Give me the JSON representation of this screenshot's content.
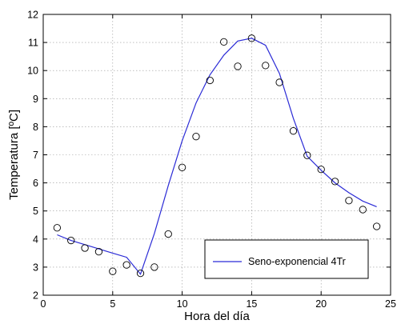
{
  "chart_data": {
    "type": "line",
    "xlabel": "Hora del día",
    "ylabel": "Temperatura [ºC]",
    "xlim": [
      0,
      25
    ],
    "ylim": [
      2,
      12
    ],
    "xticks": [
      0,
      5,
      10,
      15,
      20,
      25
    ],
    "yticks": [
      2,
      3,
      4,
      5,
      6,
      7,
      8,
      9,
      10,
      11,
      12
    ],
    "grid": true,
    "legend_position": "bottom-right",
    "series": [
      {
        "name": "Seno-exponencial 4Tr",
        "kind": "line",
        "color": "#2b2bd6",
        "x": [
          1,
          2,
          3,
          4,
          5,
          6,
          7,
          8,
          9,
          10,
          11,
          12,
          13,
          14,
          15,
          16,
          17,
          18,
          19,
          20,
          21,
          22,
          23,
          24
        ],
        "y": [
          4.15,
          3.95,
          3.8,
          3.65,
          3.5,
          3.35,
          2.75,
          4.2,
          5.9,
          7.5,
          8.85,
          9.85,
          10.55,
          11.05,
          11.15,
          10.9,
          9.9,
          8.3,
          6.95,
          6.45,
          6.0,
          5.65,
          5.35,
          5.15
        ]
      },
      {
        "kind": "scatter",
        "color": "#000000",
        "x": [
          1,
          2,
          3,
          4,
          5,
          6,
          7,
          8,
          9,
          10,
          11,
          12,
          13,
          14,
          15,
          16,
          17,
          18,
          19,
          20,
          21,
          22,
          23,
          24
        ],
        "y": [
          4.4,
          3.95,
          3.68,
          3.55,
          2.85,
          3.08,
          2.78,
          3.0,
          4.18,
          6.55,
          7.65,
          9.65,
          11.02,
          10.15,
          11.15,
          10.18,
          9.58,
          7.85,
          6.98,
          6.48,
          6.05,
          5.37,
          5.05,
          4.45
        ]
      }
    ]
  }
}
